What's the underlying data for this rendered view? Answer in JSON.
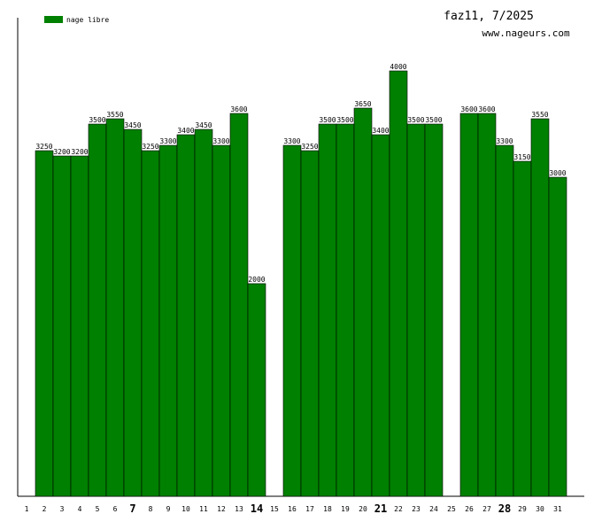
{
  "header": {
    "title": "faz11, 7/2025",
    "site": "www.nageurs.com"
  },
  "colors": {
    "bar": "#008000",
    "axis": "#000000",
    "background": "#ffffff"
  },
  "chart_data": {
    "type": "bar",
    "legend": {
      "label": "nage libre",
      "position": "top-left"
    },
    "x": [
      1,
      2,
      3,
      4,
      5,
      6,
      7,
      8,
      9,
      10,
      11,
      12,
      13,
      14,
      15,
      16,
      17,
      18,
      19,
      20,
      21,
      22,
      23,
      24,
      25,
      26,
      27,
      28,
      29,
      30,
      31
    ],
    "x_labels": [
      "1",
      "2",
      "3",
      "4",
      "5",
      "6",
      "7",
      "8",
      "9",
      "10",
      "11",
      "12",
      "13",
      "14",
      "15",
      "16",
      "17",
      "18",
      "19",
      "20",
      "21",
      "22",
      "23",
      "24",
      "25",
      "26",
      "27",
      "28",
      "29",
      "30",
      "31"
    ],
    "bold_x": [
      7,
      14,
      21,
      28
    ],
    "values": [
      null,
      3250,
      3200,
      3200,
      3500,
      3550,
      3450,
      3250,
      3300,
      3400,
      3450,
      3300,
      3600,
      2000,
      null,
      3300,
      3250,
      3500,
      3500,
      3650,
      3400,
      4000,
      3500,
      3500,
      null,
      3600,
      3600,
      3300,
      3150,
      3550,
      3000
    ],
    "value_labels": [
      "",
      "3250",
      "3200",
      "3200",
      "3500",
      "3550",
      "3450",
      "3250",
      "3300",
      "3400",
      "3450",
      "3300",
      "3600",
      "2000",
      "",
      "3300",
      "3250",
      "3500",
      "3500",
      "3650",
      "3400",
      "4000",
      "3500",
      "3500",
      "",
      "3600",
      "3600",
      "3300",
      "3150",
      "3550",
      "3000"
    ],
    "ylim": [
      0,
      4000
    ],
    "grid": false
  }
}
